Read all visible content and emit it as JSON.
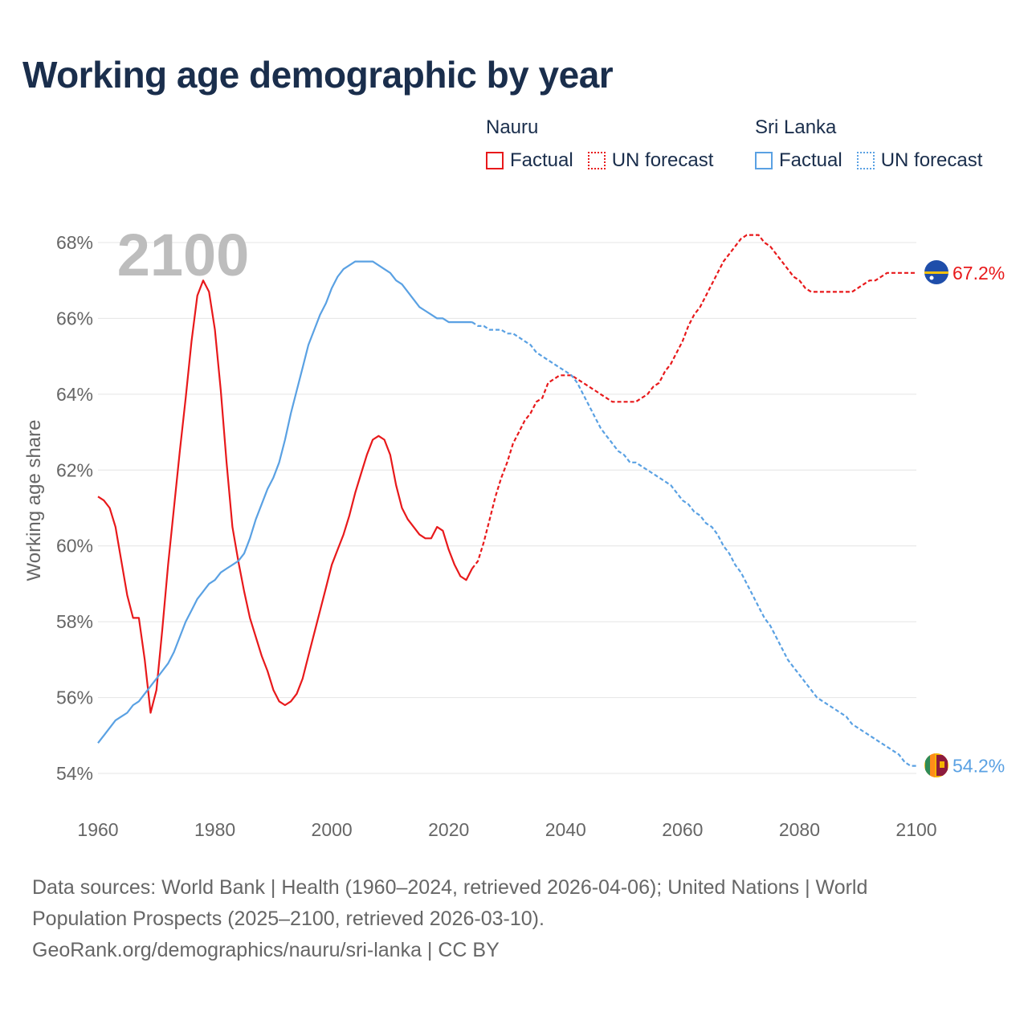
{
  "title": "Working age demographic by year",
  "year_watermark": "2100",
  "legend": {
    "groups": [
      {
        "name": "Nauru",
        "factual_label": "Factual",
        "forecast_label": "UN forecast",
        "color": "#e8191b"
      },
      {
        "name": "Sri Lanka",
        "factual_label": "Factual",
        "forecast_label": "UN forecast",
        "color": "#5aa1e3"
      }
    ]
  },
  "footer": {
    "line1": "Data sources: World Bank | Health (1960–2024, retrieved 2026-04-06); United Nations | World",
    "line2": "Population Prospects (2025–2100, retrieved 2026-03-10).",
    "line3": "GeoRank.org/demographics/nauru/sri-lanka | CC BY"
  },
  "chart_data": {
    "type": "line",
    "title": "Working age demographic by year",
    "xlabel": "",
    "ylabel": "Working age share",
    "xlim": [
      1960,
      2100
    ],
    "ylim": [
      54,
      68
    ],
    "x_ticks": [
      1960,
      1980,
      2000,
      2020,
      2040,
      2060,
      2080,
      2100
    ],
    "y_ticks": [
      54,
      56,
      58,
      60,
      62,
      64,
      66,
      68
    ],
    "y_tick_labels": [
      "54%",
      "56%",
      "58%",
      "60%",
      "62%",
      "64%",
      "66%",
      "68%"
    ],
    "forecast_start_year": 2024,
    "series": [
      {
        "name": "Nauru",
        "color": "#e8191b",
        "end_label": "67.2%",
        "points": [
          [
            1960,
            61.3
          ],
          [
            1961,
            61.2
          ],
          [
            1962,
            61.0
          ],
          [
            1963,
            60.5
          ],
          [
            1964,
            59.6
          ],
          [
            1965,
            58.7
          ],
          [
            1966,
            58.1
          ],
          [
            1967,
            58.1
          ],
          [
            1968,
            57.0
          ],
          [
            1969,
            55.6
          ],
          [
            1970,
            56.2
          ],
          [
            1971,
            57.8
          ],
          [
            1972,
            59.5
          ],
          [
            1973,
            61.0
          ],
          [
            1974,
            62.5
          ],
          [
            1975,
            63.9
          ],
          [
            1976,
            65.4
          ],
          [
            1977,
            66.6
          ],
          [
            1978,
            67.0
          ],
          [
            1979,
            66.7
          ],
          [
            1980,
            65.7
          ],
          [
            1981,
            64.1
          ],
          [
            1982,
            62.2
          ],
          [
            1983,
            60.5
          ],
          [
            1984,
            59.6
          ],
          [
            1985,
            58.8
          ],
          [
            1986,
            58.1
          ],
          [
            1987,
            57.6
          ],
          [
            1988,
            57.1
          ],
          [
            1989,
            56.7
          ],
          [
            1990,
            56.2
          ],
          [
            1991,
            55.9
          ],
          [
            1992,
            55.8
          ],
          [
            1993,
            55.9
          ],
          [
            1994,
            56.1
          ],
          [
            1995,
            56.5
          ],
          [
            1996,
            57.1
          ],
          [
            1997,
            57.7
          ],
          [
            1998,
            58.3
          ],
          [
            1999,
            58.9
          ],
          [
            2000,
            59.5
          ],
          [
            2001,
            59.9
          ],
          [
            2002,
            60.3
          ],
          [
            2003,
            60.8
          ],
          [
            2004,
            61.4
          ],
          [
            2005,
            61.9
          ],
          [
            2006,
            62.4
          ],
          [
            2007,
            62.8
          ],
          [
            2008,
            62.9
          ],
          [
            2009,
            62.8
          ],
          [
            2010,
            62.4
          ],
          [
            2011,
            61.6
          ],
          [
            2012,
            61.0
          ],
          [
            2013,
            60.7
          ],
          [
            2014,
            60.5
          ],
          [
            2015,
            60.3
          ],
          [
            2016,
            60.2
          ],
          [
            2017,
            60.2
          ],
          [
            2018,
            60.5
          ],
          [
            2019,
            60.4
          ],
          [
            2020,
            59.9
          ],
          [
            2021,
            59.5
          ],
          [
            2022,
            59.2
          ],
          [
            2023,
            59.1
          ],
          [
            2024,
            59.4
          ],
          [
            2025,
            59.6
          ],
          [
            2026,
            60.1
          ],
          [
            2027,
            60.7
          ],
          [
            2028,
            61.3
          ],
          [
            2029,
            61.8
          ],
          [
            2030,
            62.2
          ],
          [
            2031,
            62.7
          ],
          [
            2032,
            63.0
          ],
          [
            2033,
            63.3
          ],
          [
            2034,
            63.5
          ],
          [
            2035,
            63.8
          ],
          [
            2036,
            63.9
          ],
          [
            2037,
            64.3
          ],
          [
            2038,
            64.4
          ],
          [
            2039,
            64.5
          ],
          [
            2040,
            64.5
          ],
          [
            2041,
            64.5
          ],
          [
            2042,
            64.4
          ],
          [
            2043,
            64.3
          ],
          [
            2044,
            64.2
          ],
          [
            2045,
            64.1
          ],
          [
            2046,
            64.0
          ],
          [
            2047,
            63.9
          ],
          [
            2048,
            63.8
          ],
          [
            2049,
            63.8
          ],
          [
            2050,
            63.8
          ],
          [
            2051,
            63.8
          ],
          [
            2052,
            63.8
          ],
          [
            2053,
            63.9
          ],
          [
            2054,
            64.0
          ],
          [
            2055,
            64.2
          ],
          [
            2056,
            64.3
          ],
          [
            2057,
            64.6
          ],
          [
            2058,
            64.8
          ],
          [
            2059,
            65.1
          ],
          [
            2060,
            65.4
          ],
          [
            2061,
            65.8
          ],
          [
            2062,
            66.1
          ],
          [
            2063,
            66.3
          ],
          [
            2064,
            66.6
          ],
          [
            2065,
            66.9
          ],
          [
            2066,
            67.2
          ],
          [
            2067,
            67.5
          ],
          [
            2068,
            67.7
          ],
          [
            2069,
            67.9
          ],
          [
            2070,
            68.1
          ],
          [
            2071,
            68.2
          ],
          [
            2072,
            68.2
          ],
          [
            2073,
            68.2
          ],
          [
            2074,
            68.0
          ],
          [
            2075,
            67.9
          ],
          [
            2076,
            67.7
          ],
          [
            2077,
            67.5
          ],
          [
            2078,
            67.3
          ],
          [
            2079,
            67.1
          ],
          [
            2080,
            67.0
          ],
          [
            2081,
            66.8
          ],
          [
            2082,
            66.7
          ],
          [
            2083,
            66.7
          ],
          [
            2084,
            66.7
          ],
          [
            2085,
            66.7
          ],
          [
            2086,
            66.7
          ],
          [
            2087,
            66.7
          ],
          [
            2088,
            66.7
          ],
          [
            2089,
            66.7
          ],
          [
            2090,
            66.8
          ],
          [
            2091,
            66.9
          ],
          [
            2092,
            67.0
          ],
          [
            2093,
            67.0
          ],
          [
            2094,
            67.1
          ],
          [
            2095,
            67.2
          ],
          [
            2096,
            67.2
          ],
          [
            2097,
            67.2
          ],
          [
            2098,
            67.2
          ],
          [
            2099,
            67.2
          ],
          [
            2100,
            67.2
          ]
        ]
      },
      {
        "name": "Sri Lanka",
        "color": "#5aa1e3",
        "end_label": "54.2%",
        "points": [
          [
            1960,
            54.8
          ],
          [
            1961,
            55.0
          ],
          [
            1962,
            55.2
          ],
          [
            1963,
            55.4
          ],
          [
            1964,
            55.5
          ],
          [
            1965,
            55.6
          ],
          [
            1966,
            55.8
          ],
          [
            1967,
            55.9
          ],
          [
            1968,
            56.1
          ],
          [
            1969,
            56.3
          ],
          [
            1970,
            56.5
          ],
          [
            1971,
            56.7
          ],
          [
            1972,
            56.9
          ],
          [
            1973,
            57.2
          ],
          [
            1974,
            57.6
          ],
          [
            1975,
            58.0
          ],
          [
            1976,
            58.3
          ],
          [
            1977,
            58.6
          ],
          [
            1978,
            58.8
          ],
          [
            1979,
            59.0
          ],
          [
            1980,
            59.1
          ],
          [
            1981,
            59.3
          ],
          [
            1982,
            59.4
          ],
          [
            1983,
            59.5
          ],
          [
            1984,
            59.6
          ],
          [
            1985,
            59.8
          ],
          [
            1986,
            60.2
          ],
          [
            1987,
            60.7
          ],
          [
            1988,
            61.1
          ],
          [
            1989,
            61.5
          ],
          [
            1990,
            61.8
          ],
          [
            1991,
            62.2
          ],
          [
            1992,
            62.8
          ],
          [
            1993,
            63.5
          ],
          [
            1994,
            64.1
          ],
          [
            1995,
            64.7
          ],
          [
            1996,
            65.3
          ],
          [
            1997,
            65.7
          ],
          [
            1998,
            66.1
          ],
          [
            1999,
            66.4
          ],
          [
            2000,
            66.8
          ],
          [
            2001,
            67.1
          ],
          [
            2002,
            67.3
          ],
          [
            2003,
            67.4
          ],
          [
            2004,
            67.5
          ],
          [
            2005,
            67.5
          ],
          [
            2006,
            67.5
          ],
          [
            2007,
            67.5
          ],
          [
            2008,
            67.4
          ],
          [
            2009,
            67.3
          ],
          [
            2010,
            67.2
          ],
          [
            2011,
            67.0
          ],
          [
            2012,
            66.9
          ],
          [
            2013,
            66.7
          ],
          [
            2014,
            66.5
          ],
          [
            2015,
            66.3
          ],
          [
            2016,
            66.2
          ],
          [
            2017,
            66.1
          ],
          [
            2018,
            66.0
          ],
          [
            2019,
            66.0
          ],
          [
            2020,
            65.9
          ],
          [
            2021,
            65.9
          ],
          [
            2022,
            65.9
          ],
          [
            2023,
            65.9
          ],
          [
            2024,
            65.9
          ],
          [
            2025,
            65.8
          ],
          [
            2026,
            65.8
          ],
          [
            2027,
            65.7
          ],
          [
            2028,
            65.7
          ],
          [
            2029,
            65.7
          ],
          [
            2030,
            65.6
          ],
          [
            2031,
            65.6
          ],
          [
            2032,
            65.5
          ],
          [
            2033,
            65.4
          ],
          [
            2034,
            65.3
          ],
          [
            2035,
            65.1
          ],
          [
            2036,
            65.0
          ],
          [
            2037,
            64.9
          ],
          [
            2038,
            64.8
          ],
          [
            2039,
            64.7
          ],
          [
            2040,
            64.6
          ],
          [
            2041,
            64.5
          ],
          [
            2042,
            64.3
          ],
          [
            2043,
            64.0
          ],
          [
            2044,
            63.7
          ],
          [
            2045,
            63.4
          ],
          [
            2046,
            63.1
          ],
          [
            2047,
            62.9
          ],
          [
            2048,
            62.7
          ],
          [
            2049,
            62.5
          ],
          [
            2050,
            62.4
          ],
          [
            2051,
            62.2
          ],
          [
            2052,
            62.2
          ],
          [
            2053,
            62.1
          ],
          [
            2054,
            62.0
          ],
          [
            2055,
            61.9
          ],
          [
            2056,
            61.8
          ],
          [
            2057,
            61.7
          ],
          [
            2058,
            61.6
          ],
          [
            2059,
            61.4
          ],
          [
            2060,
            61.2
          ],
          [
            2061,
            61.1
          ],
          [
            2062,
            60.9
          ],
          [
            2063,
            60.8
          ],
          [
            2064,
            60.6
          ],
          [
            2065,
            60.5
          ],
          [
            2066,
            60.3
          ],
          [
            2067,
            60.0
          ],
          [
            2068,
            59.8
          ],
          [
            2069,
            59.5
          ],
          [
            2070,
            59.3
          ],
          [
            2071,
            59.0
          ],
          [
            2072,
            58.7
          ],
          [
            2073,
            58.4
          ],
          [
            2074,
            58.1
          ],
          [
            2075,
            57.9
          ],
          [
            2076,
            57.6
          ],
          [
            2077,
            57.3
          ],
          [
            2078,
            57.0
          ],
          [
            2079,
            56.8
          ],
          [
            2080,
            56.6
          ],
          [
            2081,
            56.4
          ],
          [
            2082,
            56.2
          ],
          [
            2083,
            56.0
          ],
          [
            2084,
            55.9
          ],
          [
            2085,
            55.8
          ],
          [
            2086,
            55.7
          ],
          [
            2087,
            55.6
          ],
          [
            2088,
            55.5
          ],
          [
            2089,
            55.3
          ],
          [
            2090,
            55.2
          ],
          [
            2091,
            55.1
          ],
          [
            2092,
            55.0
          ],
          [
            2093,
            54.9
          ],
          [
            2094,
            54.8
          ],
          [
            2095,
            54.7
          ],
          [
            2096,
            54.6
          ],
          [
            2097,
            54.5
          ],
          [
            2098,
            54.3
          ],
          [
            2099,
            54.2
          ],
          [
            2100,
            54.2
          ]
        ]
      }
    ]
  }
}
